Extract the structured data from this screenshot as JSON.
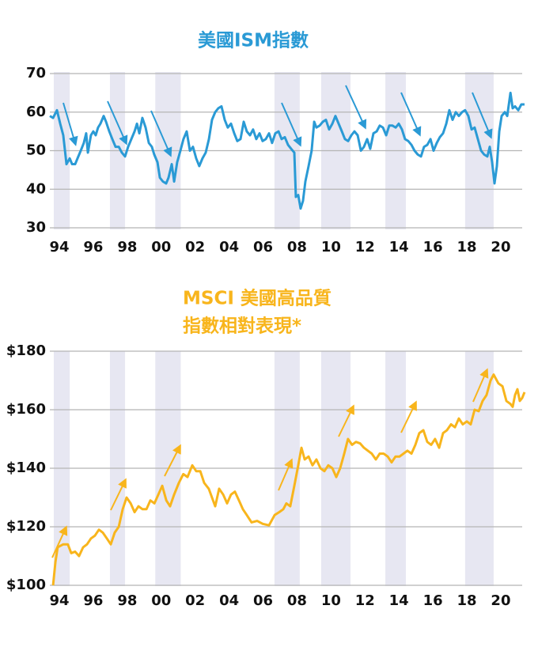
{
  "chart_data": [
    {
      "type": "line",
      "title": "美國ISM指數",
      "color": "#2a9ad5",
      "grid": true,
      "band_color": "#e7e7f2",
      "xlim": [
        1993.44,
        2021.4
      ],
      "ylim": [
        30,
        70
      ],
      "yticks": [
        30,
        40,
        50,
        60,
        70
      ],
      "xticks": [
        {
          "value": 1994,
          "label": "94"
        },
        {
          "value": 1996,
          "label": "96"
        },
        {
          "value": 1998,
          "label": "98"
        },
        {
          "value": 2000,
          "label": "00"
        },
        {
          "value": 2002,
          "label": "02"
        },
        {
          "value": 2004,
          "label": "04"
        },
        {
          "value": 2006,
          "label": "06"
        },
        {
          "value": 2008,
          "label": "08"
        },
        {
          "value": 2010,
          "label": "10"
        },
        {
          "value": 2012,
          "label": "12"
        },
        {
          "value": 2014,
          "label": "14"
        },
        {
          "value": 2016,
          "label": "16"
        },
        {
          "value": 2018,
          "label": "18"
        },
        {
          "value": 2020,
          "label": "20"
        }
      ],
      "bands": [
        [
          1993.67,
          1994.61
        ],
        [
          1996.98,
          1997.87
        ],
        [
          1999.65,
          2001.15
        ],
        [
          2006.67,
          2008.16
        ],
        [
          2009.42,
          2011.15
        ],
        [
          2013.2,
          2014.41
        ],
        [
          2017.9,
          2019.58
        ]
      ],
      "x": [
        1993.44,
        1993.63,
        1993.86,
        1994.05,
        1994.23,
        1994.42,
        1994.61,
        1994.75,
        1994.93,
        1995.07,
        1995.26,
        1995.44,
        1995.58,
        1995.68,
        1995.86,
        1996.0,
        1996.14,
        1996.28,
        1996.42,
        1996.61,
        1996.75,
        1996.94,
        1997.12,
        1997.31,
        1997.5,
        1997.68,
        1997.87,
        1998.05,
        1998.24,
        1998.43,
        1998.57,
        1998.71,
        1998.89,
        1999.08,
        1999.27,
        1999.45,
        1999.59,
        1999.78,
        1999.92,
        2000.1,
        2000.29,
        2000.43,
        2000.62,
        2000.76,
        2000.94,
        2001.13,
        2001.31,
        2001.5,
        2001.69,
        2001.87,
        2002.06,
        2002.24,
        2002.43,
        2002.62,
        2002.81,
        2002.99,
        2003.18,
        2003.36,
        2003.55,
        2003.74,
        2003.92,
        2004.11,
        2004.3,
        2004.48,
        2004.67,
        2004.86,
        2005.04,
        2005.23,
        2005.41,
        2005.6,
        2005.79,
        2005.97,
        2006.16,
        2006.35,
        2006.53,
        2006.72,
        2006.91,
        2007.09,
        2007.28,
        2007.47,
        2007.65,
        2007.84,
        2007.93,
        2008.07,
        2008.21,
        2008.35,
        2008.49,
        2008.68,
        2008.86,
        2009.01,
        2009.14,
        2009.33,
        2009.52,
        2009.7,
        2009.89,
        2010.08,
        2010.26,
        2010.45,
        2010.64,
        2010.82,
        2011.01,
        2011.2,
        2011.38,
        2011.57,
        2011.76,
        2011.94,
        2012.13,
        2012.31,
        2012.5,
        2012.69,
        2012.87,
        2013.06,
        2013.25,
        2013.43,
        2013.62,
        2013.81,
        2013.99,
        2014.18,
        2014.36,
        2014.55,
        2014.74,
        2014.92,
        2015.11,
        2015.3,
        2015.48,
        2015.67,
        2015.86,
        2016.04,
        2016.23,
        2016.41,
        2016.6,
        2016.79,
        2016.97,
        2017.16,
        2017.35,
        2017.53,
        2017.72,
        2017.9,
        2018.09,
        2018.28,
        2018.46,
        2018.65,
        2018.84,
        2019.02,
        2019.21,
        2019.35,
        2019.49,
        2019.63,
        2019.77,
        2019.91,
        2020.05,
        2020.24,
        2020.38,
        2020.57,
        2020.7,
        2020.84,
        2021.03,
        2021.21,
        2021.4
      ],
      "values": [
        59,
        58.5,
        60.5,
        57,
        54,
        46.5,
        48,
        46.5,
        46.5,
        48,
        50,
        52,
        54.5,
        49.5,
        54,
        55,
        54,
        56,
        57,
        59,
        57.5,
        55,
        53,
        51,
        51,
        49.5,
        48.5,
        51,
        53,
        55,
        57,
        54.5,
        58.5,
        56,
        52,
        51,
        49,
        47,
        43,
        42,
        41.5,
        43,
        46.5,
        42,
        47,
        50,
        53,
        55,
        50,
        51,
        48,
        46,
        48,
        49.5,
        53,
        58,
        60,
        61,
        61.5,
        58,
        56,
        57,
        54.5,
        52.5,
        53,
        57.5,
        55,
        54,
        55.5,
        53,
        54.5,
        52.5,
        53,
        54.5,
        52,
        54.5,
        55,
        53,
        53.5,
        51.5,
        50.5,
        49.5,
        38,
        38.5,
        35,
        37,
        42,
        46,
        50,
        57.5,
        56,
        56.5,
        57.5,
        58,
        55.5,
        57,
        59,
        57,
        55,
        53,
        52.5,
        54,
        55,
        54,
        50,
        51,
        53,
        50.5,
        54.5,
        55,
        56.5,
        56,
        54,
        56.5,
        56.5,
        56,
        57,
        55.5,
        53,
        52.5,
        51.5,
        50,
        49,
        48.5,
        51,
        51.5,
        53,
        50,
        52,
        53.5,
        54.5,
        57,
        60.5,
        58,
        60,
        59,
        60,
        60.5,
        59,
        55.5,
        56,
        53,
        50,
        49,
        48.5,
        51,
        47,
        41.5,
        46,
        55,
        59,
        60,
        59,
        65,
        61,
        61.5,
        60.5,
        62,
        62
      ]
    },
    {
      "type": "line",
      "title": [
        "MSCI 美國高品質",
        "指數相對表現*"
      ],
      "color": "#f8b51c",
      "grid": true,
      "band_color": "#e7e7f2",
      "xlim": [
        1993.44,
        2021.4
      ],
      "ylim": [
        100,
        180
      ],
      "yticks": [
        {
          "value": 100,
          "label": "$100"
        },
        {
          "value": 120,
          "label": "$120"
        },
        {
          "value": 140,
          "label": "$140"
        },
        {
          "value": 160,
          "label": "$160"
        },
        {
          "value": 180,
          "label": "$180"
        }
      ],
      "xticks": [
        {
          "value": 1994,
          "label": "94"
        },
        {
          "value": 1996,
          "label": "96"
        },
        {
          "value": 1998,
          "label": "98"
        },
        {
          "value": 2000,
          "label": "00"
        },
        {
          "value": 2002,
          "label": "02"
        },
        {
          "value": 2004,
          "label": "04"
        },
        {
          "value": 2006,
          "label": "06"
        },
        {
          "value": 2008,
          "label": "08"
        },
        {
          "value": 2010,
          "label": "10"
        },
        {
          "value": 2012,
          "label": "12"
        },
        {
          "value": 2014,
          "label": "14"
        },
        {
          "value": 2016,
          "label": "16"
        },
        {
          "value": 2018,
          "label": "18"
        },
        {
          "value": 2020,
          "label": "20"
        }
      ],
      "bands": [
        [
          1993.67,
          1994.61
        ],
        [
          1996.98,
          1997.87
        ],
        [
          1999.65,
          2001.15
        ],
        [
          2006.67,
          2008.16
        ],
        [
          2009.42,
          2011.15
        ],
        [
          2013.2,
          2014.41
        ],
        [
          2017.9,
          2019.58
        ]
      ],
      "x": [
        1993.63,
        1993.77,
        1993.9,
        1994.23,
        1994.5,
        1994.7,
        1994.93,
        1995.16,
        1995.4,
        1995.63,
        1995.86,
        1996.1,
        1996.33,
        1996.56,
        1996.8,
        1997.03,
        1997.26,
        1997.5,
        1997.73,
        1997.96,
        1998.2,
        1998.43,
        1998.66,
        1998.9,
        1999.13,
        1999.36,
        1999.6,
        1999.83,
        2000.06,
        2000.3,
        2000.52,
        2000.76,
        2001.04,
        2001.3,
        2001.55,
        2001.83,
        2002.06,
        2002.3,
        2002.53,
        2002.8,
        2002.99,
        2003.18,
        2003.41,
        2003.65,
        2003.88,
        2004.11,
        2004.34,
        2004.58,
        2004.81,
        2005.04,
        2005.32,
        2005.65,
        2005.98,
        2006.35,
        2006.68,
        2006.95,
        2007.19,
        2007.37,
        2007.6,
        2007.84,
        2008.07,
        2008.26,
        2008.45,
        2008.68,
        2008.91,
        2009.14,
        2009.38,
        2009.61,
        2009.84,
        2010.08,
        2010.31,
        2010.54,
        2010.78,
        2011.0,
        2011.24,
        2011.47,
        2011.71,
        2011.94,
        2012.17,
        2012.4,
        2012.64,
        2012.87,
        2013.1,
        2013.34,
        2013.57,
        2013.8,
        2014.04,
        2014.27,
        2014.5,
        2014.74,
        2014.97,
        2015.2,
        2015.44,
        2015.67,
        2015.9,
        2016.13,
        2016.37,
        2016.6,
        2016.83,
        2017.07,
        2017.3,
        2017.53,
        2017.76,
        2018.0,
        2018.23,
        2018.46,
        2018.7,
        2018.93,
        2019.16,
        2019.4,
        2019.58,
        2019.86,
        2020.1,
        2020.33,
        2020.56,
        2020.7,
        2020.84,
        2020.98,
        2021.12,
        2021.26,
        2021.4
      ],
      "values": [
        100,
        108,
        113,
        114,
        114,
        111,
        111.5,
        110,
        113,
        114,
        116,
        117,
        119,
        118,
        116,
        114,
        118,
        120,
        126,
        130,
        128,
        125,
        127,
        126,
        126,
        129,
        128,
        131,
        134,
        129,
        127,
        131,
        135,
        138,
        137,
        141,
        139,
        139,
        135,
        133,
        130,
        127,
        133,
        131,
        128,
        131,
        132,
        129,
        126,
        124,
        121.5,
        122,
        121,
        120.5,
        124,
        125,
        126,
        128,
        127,
        134,
        141,
        147,
        143,
        144,
        141,
        143,
        140,
        139,
        141,
        140,
        137,
        140,
        145,
        150,
        148,
        149,
        148.5,
        147,
        146,
        145,
        143,
        145,
        145,
        144,
        142,
        144,
        144,
        145,
        146,
        145,
        148,
        152,
        153,
        149,
        148,
        150,
        147,
        152,
        153,
        155,
        154,
        157,
        155,
        156,
        155,
        160,
        159.5,
        163,
        165,
        170,
        172,
        169,
        168,
        163,
        162,
        161,
        165,
        167,
        163,
        164,
        166
      ]
    }
  ]
}
